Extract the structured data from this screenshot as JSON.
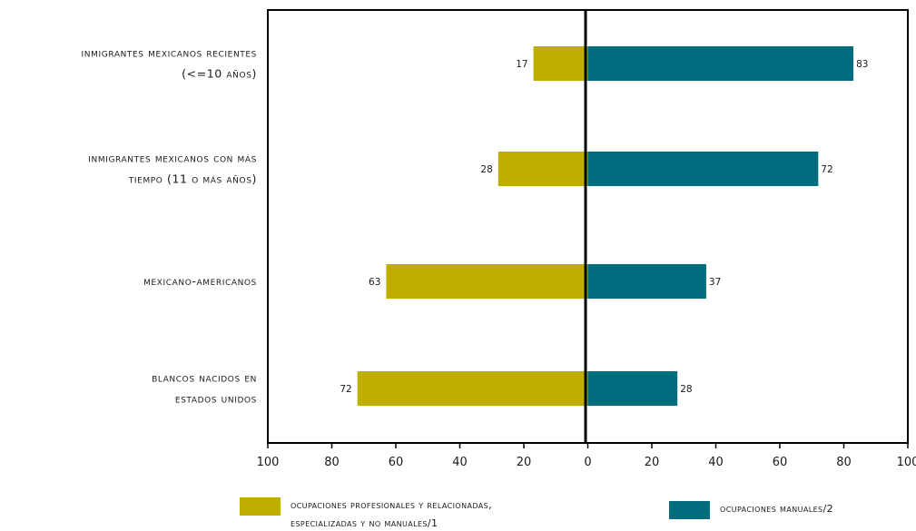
{
  "chart_data": {
    "type": "bar",
    "orientation": "horizontal-diverging",
    "categories": [
      [
        "inmigrantes mexicanos recientes",
        "(<=10 años)"
      ],
      [
        "inmigrantes mexicanos con más",
        "tiempo (11 o más años)"
      ],
      [
        "mexicano-americanos"
      ],
      [
        "blancos nacidos en",
        "estados unidos"
      ]
    ],
    "series": [
      {
        "name": "ocupaciones profesionales y relacionadas, especializadas y no manuales/1",
        "legend_lines": [
          "ocupaciones profesionales y relacionadas,",
          "especializadas y no manuales/1"
        ],
        "direction": "left",
        "color": "#bfad00",
        "values": [
          17,
          28,
          63,
          72
        ]
      },
      {
        "name": "ocupaciones manuales/2",
        "legend_lines": [
          "ocupaciones manuales/2"
        ],
        "direction": "right",
        "color": "#006d7e",
        "values": [
          83,
          72,
          37,
          28
        ]
      }
    ],
    "xlim": [
      -100,
      100
    ],
    "x_ticks": [
      -100,
      -80,
      -60,
      -40,
      -20,
      0,
      20,
      40,
      60,
      80,
      100
    ],
    "x_tick_labels": [
      "100",
      "80",
      "60",
      "40",
      "20",
      "0",
      "20",
      "40",
      "60",
      "80",
      "100"
    ],
    "grid": false,
    "legend": "bottom"
  }
}
